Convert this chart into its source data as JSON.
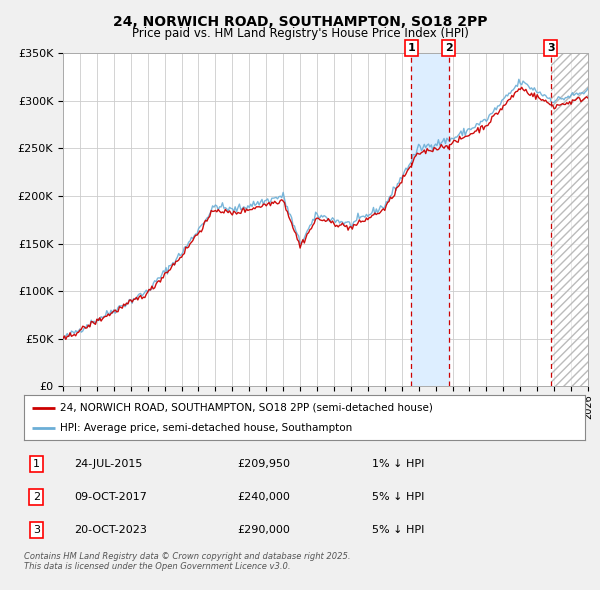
{
  "title": "24, NORWICH ROAD, SOUTHAMPTON, SO18 2PP",
  "subtitle": "Price paid vs. HM Land Registry's House Price Index (HPI)",
  "x_start_year": 1995,
  "x_end_year": 2026,
  "y_min": 0,
  "y_max": 350000,
  "y_ticks": [
    0,
    50000,
    100000,
    150000,
    200000,
    250000,
    300000,
    350000
  ],
  "y_tick_labels": [
    "£0",
    "£50K",
    "£100K",
    "£150K",
    "£200K",
    "£250K",
    "£300K",
    "£350K"
  ],
  "hpi_color": "#6baed6",
  "price_color": "#cc0000",
  "sale_dates": [
    2015.56,
    2017.77,
    2023.8
  ],
  "sale_labels": [
    "1",
    "2",
    "3"
  ],
  "sale_prices": [
    209950,
    240000,
    290000
  ],
  "sale_date_strs": [
    "24-JUL-2015",
    "09-OCT-2017",
    "20-OCT-2023"
  ],
  "sale_pct": [
    "1%",
    "5%",
    "5%"
  ],
  "legend_label_red": "24, NORWICH ROAD, SOUTHAMPTON, SO18 2PP (semi-detached house)",
  "legend_label_blue": "HPI: Average price, semi-detached house, Southampton",
  "footnote": "Contains HM Land Registry data © Crown copyright and database right 2025.\nThis data is licensed under the Open Government Licence v3.0.",
  "bg_color": "#f0f0f0",
  "plot_bg_color": "#ffffff",
  "shade_between_color": "#ddeeff",
  "hatch_color": "#bbbbbb",
  "grid_color": "#cccccc"
}
